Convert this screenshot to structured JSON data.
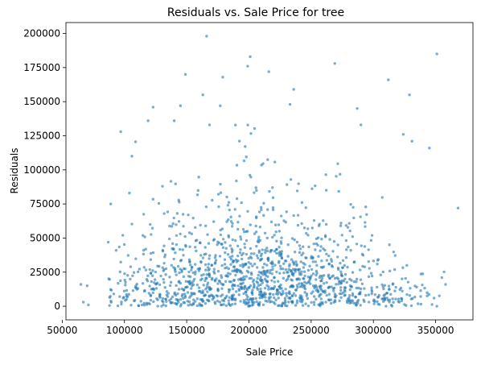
{
  "chart_data": {
    "type": "scatter",
    "title": "Residuals vs. Sale Price for tree",
    "xlabel": "Sale Price",
    "ylabel": "Residuals",
    "xlim": [
      53000,
      380000
    ],
    "ylim": [
      -10000,
      208000
    ],
    "xticks": [
      50000,
      100000,
      150000,
      200000,
      250000,
      300000,
      350000
    ],
    "yticks": [
      0,
      25000,
      50000,
      75000,
      100000,
      125000,
      150000,
      175000,
      200000
    ],
    "grid": false,
    "marker_color": "#1f77b4",
    "marker_alpha": 0.6,
    "highlighted_points": [
      {
        "x": 166000,
        "y": 198000
      },
      {
        "x": 201000,
        "y": 183000
      },
      {
        "x": 351000,
        "y": 185000
      },
      {
        "x": 269000,
        "y": 178000
      },
      {
        "x": 199000,
        "y": 176000
      },
      {
        "x": 216000,
        "y": 172000
      },
      {
        "x": 149000,
        "y": 170000
      },
      {
        "x": 179000,
        "y": 168000
      },
      {
        "x": 312000,
        "y": 166000
      },
      {
        "x": 236000,
        "y": 159000
      },
      {
        "x": 329000,
        "y": 155000
      },
      {
        "x": 163000,
        "y": 155000
      },
      {
        "x": 233000,
        "y": 148000
      },
      {
        "x": 177000,
        "y": 147000
      },
      {
        "x": 145000,
        "y": 147000
      },
      {
        "x": 123000,
        "y": 146000
      },
      {
        "x": 287000,
        "y": 145000
      },
      {
        "x": 140000,
        "y": 136000
      },
      {
        "x": 119000,
        "y": 136000
      },
      {
        "x": 290000,
        "y": 133000
      },
      {
        "x": 97000,
        "y": 128000
      },
      {
        "x": 324000,
        "y": 126000
      },
      {
        "x": 331000,
        "y": 121000
      },
      {
        "x": 106000,
        "y": 110000
      },
      {
        "x": 368000,
        "y": 72000
      },
      {
        "x": 89000,
        "y": 75000
      },
      {
        "x": 65000,
        "y": 16000
      },
      {
        "x": 70000,
        "y": 15000
      },
      {
        "x": 67000,
        "y": 3000
      },
      {
        "x": 71000,
        "y": 1000
      },
      {
        "x": 345000,
        "y": 116000
      },
      {
        "x": 87000,
        "y": 47000
      },
      {
        "x": 104000,
        "y": 83000
      },
      {
        "x": 355000,
        "y": 21000
      },
      {
        "x": 358000,
        "y": 16000
      },
      {
        "x": 351000,
        "y": 0
      }
    ]
  }
}
